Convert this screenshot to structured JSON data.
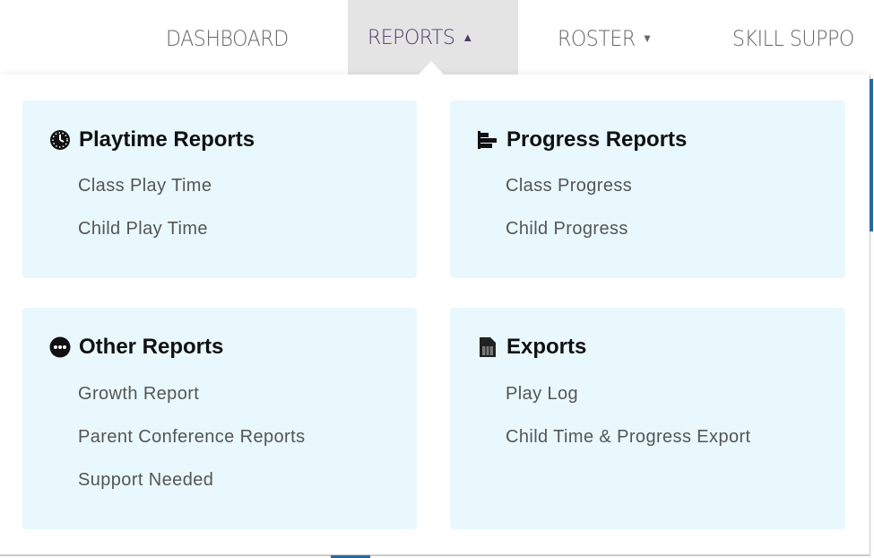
{
  "nav": {
    "items": [
      {
        "label": "DASHBOARD"
      },
      {
        "label": "REPORTS",
        "active": true,
        "caret": "up"
      },
      {
        "label": "ROSTER",
        "caret": "down"
      },
      {
        "label": "SKILL SUPPO"
      }
    ]
  },
  "menu": {
    "sections": [
      {
        "title": "Playtime Reports",
        "icon": "clock-icon",
        "links": [
          "Class Play Time",
          "Child Play Time"
        ]
      },
      {
        "title": "Progress Reports",
        "icon": "bar-chart-icon",
        "links": [
          "Class Progress",
          "Child Progress"
        ]
      },
      {
        "title": "Other Reports",
        "icon": "ellipsis-circle-icon",
        "links": [
          "Growth Report",
          "Parent Conference Reports",
          "Support Needed"
        ]
      },
      {
        "title": "Exports",
        "icon": "file-spreadsheet-icon",
        "links": [
          "Play Log",
          "Child Time & Progress Export"
        ]
      }
    ]
  },
  "colors": {
    "card_bg": "#e8f8fd",
    "active_tab": "#e4e4e4",
    "scrollbar": "#2a6a9a"
  }
}
